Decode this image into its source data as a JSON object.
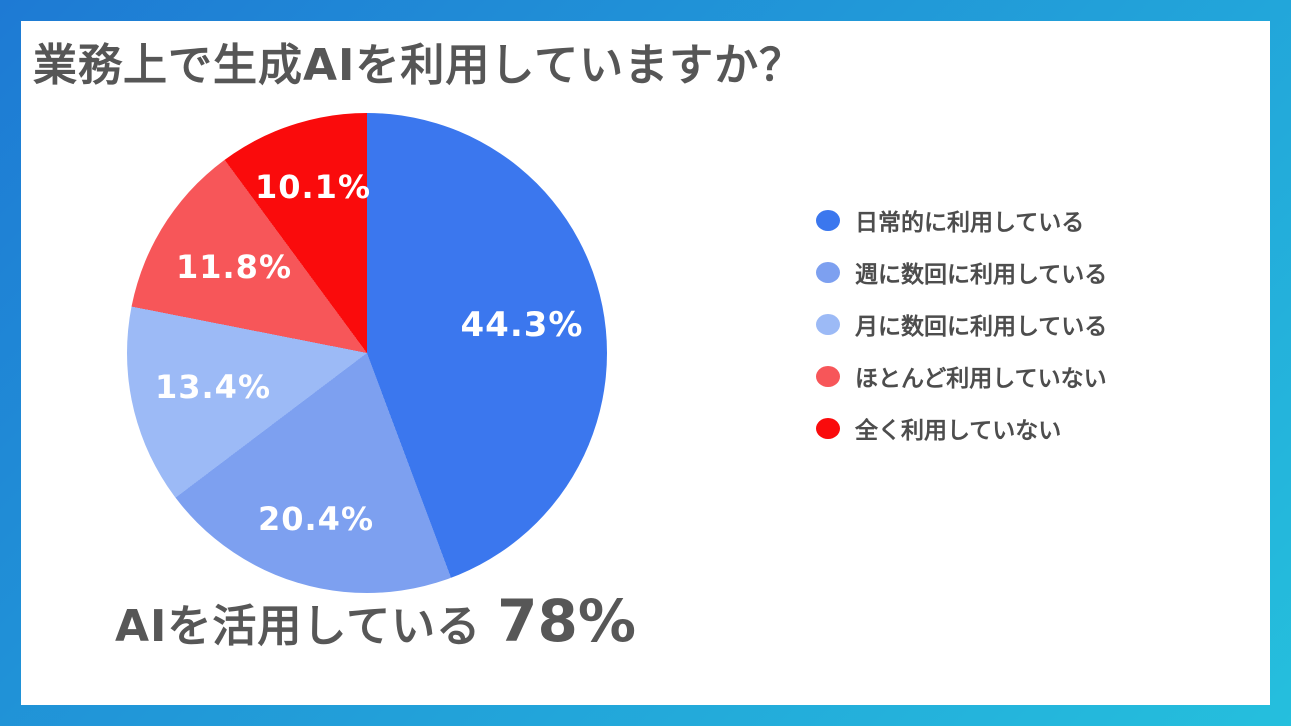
{
  "title": "業務上で生成AIを利用していますか？",
  "frame": {
    "gradient_start": "#1E7AD4",
    "gradient_end": "#25BFDD"
  },
  "chart_data": {
    "type": "pie",
    "title": "業務上で生成AIを利用していますか？",
    "categories": [
      "日常的に利用している",
      "週に数回に利用している",
      "月に数回に利用している",
      "ほとんど利用していない",
      "全く利用していない"
    ],
    "values": [
      44.3,
      20.4,
      13.4,
      11.8,
      10.1
    ],
    "labels": [
      "44.3%",
      "20.4%",
      "13.4%",
      "11.8%",
      "10.1%"
    ],
    "colors": [
      "#3B77EE",
      "#7DA0F0",
      "#9CBAF6",
      "#F75659",
      "#FA0B0C"
    ],
    "start_angle_deg": 0,
    "direction": "clockwise",
    "legend_position": "right",
    "annotation": "AIを活用している 78%"
  },
  "caption": {
    "text": "AIを活用している",
    "value": "78%"
  }
}
